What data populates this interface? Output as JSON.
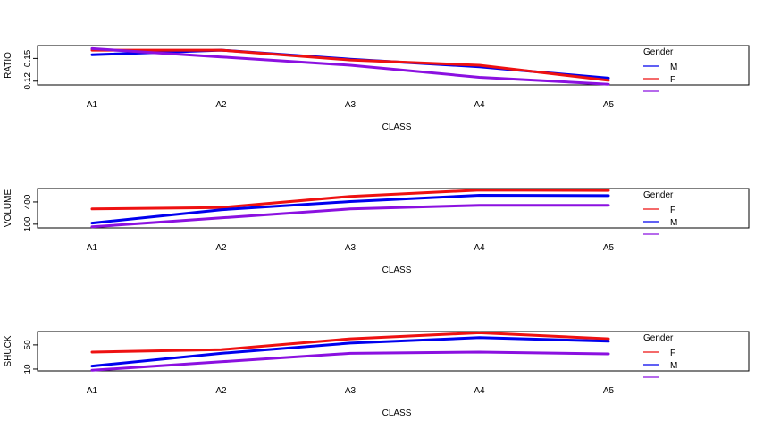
{
  "chart_data": [
    {
      "type": "line",
      "xlabel": "CLASS",
      "ylabel": "RATIO",
      "categories": [
        "A1",
        "A2",
        "A3",
        "A4",
        "A5"
      ],
      "yticks": [
        "0.12",
        "0.15"
      ],
      "ylim": [
        0.115,
        0.167
      ],
      "legend": {
        "title": "Gender",
        "position": "right"
      },
      "series": [
        {
          "name": "M",
          "color": "#0000ee",
          "values": [
            0.155,
            0.161,
            0.149,
            0.139,
            0.124
          ]
        },
        {
          "name": "F",
          "color": "#ee1111",
          "values": [
            0.161,
            0.161,
            0.148,
            0.141,
            0.121
          ]
        },
        {
          "name": "",
          "color": "#8b10e0",
          "values": [
            0.163,
            0.152,
            0.141,
            0.125,
            0.116
          ]
        }
      ]
    },
    {
      "type": "line",
      "xlabel": "CLASS",
      "ylabel": "VOLUME",
      "categories": [
        "A1",
        "A2",
        "A3",
        "A4",
        "A5"
      ],
      "yticks": [
        "100",
        "400"
      ],
      "ylim": [
        50,
        580
      ],
      "legend": {
        "title": "Gender",
        "position": "right"
      },
      "series": [
        {
          "name": "F",
          "color": "#ee1111",
          "values": [
            305,
            325,
            475,
            560,
            555
          ]
        },
        {
          "name": "M",
          "color": "#0000ee",
          "values": [
            115,
            295,
            405,
            490,
            485
          ]
        },
        {
          "name": "",
          "color": "#8b10e0",
          "values": [
            65,
            185,
            305,
            355,
            355
          ]
        }
      ]
    },
    {
      "type": "line",
      "xlabel": "CLASS",
      "ylabel": "SHUCK",
      "categories": [
        "A1",
        "A2",
        "A3",
        "A4",
        "A5"
      ],
      "yticks": [
        "10",
        "50"
      ],
      "ylim": [
        7,
        72
      ],
      "legend": {
        "title": "Gender",
        "position": "right"
      },
      "series": [
        {
          "name": "F",
          "color": "#ee1111",
          "values": [
            38,
            42,
            60,
            70,
            60
          ]
        },
        {
          "name": "M",
          "color": "#0000ee",
          "values": [
            15,
            36,
            53,
            62,
            56
          ]
        },
        {
          "name": "",
          "color": "#8b10e0",
          "values": [
            8,
            22,
            36,
            38,
            35
          ]
        }
      ]
    }
  ]
}
